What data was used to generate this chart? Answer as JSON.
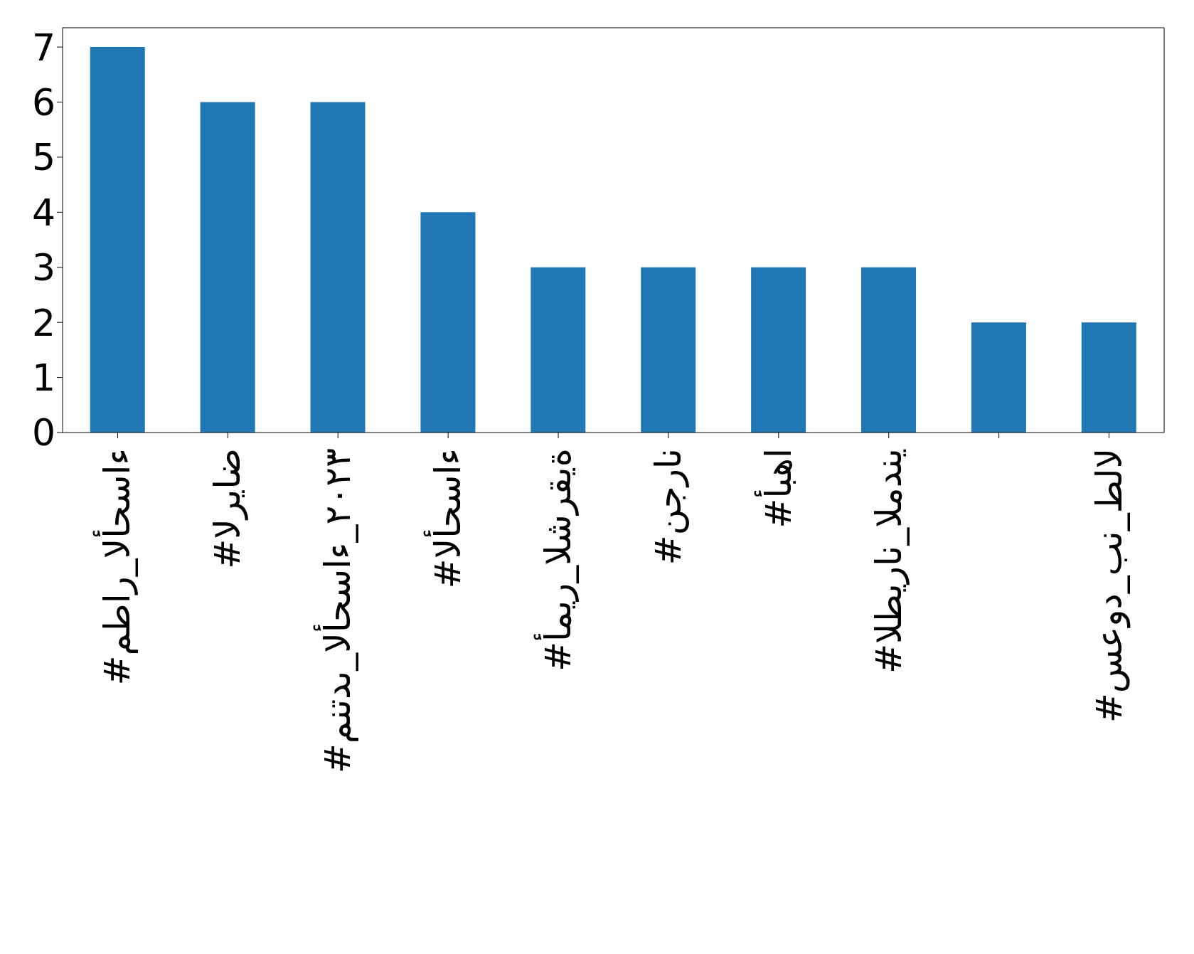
{
  "chart_data": {
    "type": "bar",
    "categories": [
      "#مطار_الأحساء",
      "#الرياض",
      "#منتدى_الأحساء_٢٠٢٣",
      "#الأحساء",
      "#أمير_الشرقية",
      "#نجران",
      "#أبها",
      "#الطيران_المدني",
      null,
      "#سعود_بن_طلال"
    ],
    "values": [
      7,
      6,
      6,
      4,
      3,
      3,
      3,
      3,
      2,
      2
    ],
    "color": "#1f77b4",
    "ylim": [
      0,
      7.35
    ],
    "yticks": [
      0,
      1,
      2,
      3,
      4,
      5,
      6,
      7
    ],
    "grid": false,
    "legend": false
  }
}
